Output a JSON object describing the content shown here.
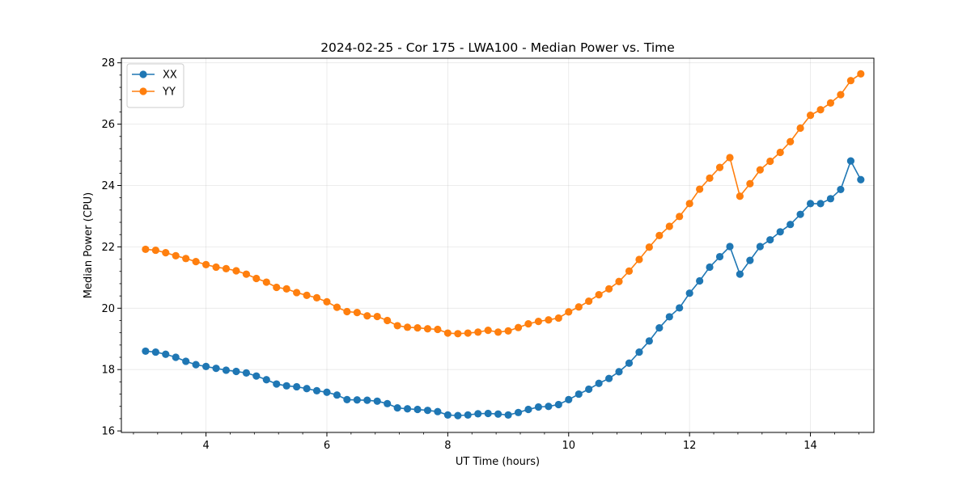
{
  "chart_data": {
    "type": "line",
    "title": "2024-02-25 - Cor 175 - LWA100 - Median Power vs. Time",
    "xlabel": "UT Time (hours)",
    "ylabel": "Median Power (CPU)",
    "xlim": [
      2.6,
      15.05
    ],
    "ylim": [
      15.95,
      28.15
    ],
    "xticks": [
      4,
      6,
      8,
      10,
      12,
      14
    ],
    "xtick_labels": [
      "4",
      "6",
      "8",
      "10",
      "12",
      "14"
    ],
    "xminor_step": 0.4,
    "yticks": [
      16,
      18,
      20,
      22,
      24,
      26,
      28
    ],
    "ytick_labels": [
      "16",
      "18",
      "20",
      "22",
      "24",
      "26",
      "28"
    ],
    "yminor_step": 0.4,
    "grid": true,
    "legend": "top-left",
    "x": [
      3.0,
      3.167,
      3.333,
      3.5,
      3.667,
      3.833,
      4.0,
      4.167,
      4.333,
      4.5,
      4.667,
      4.833,
      5.0,
      5.167,
      5.333,
      5.5,
      5.667,
      5.833,
      6.0,
      6.167,
      6.333,
      6.5,
      6.667,
      6.833,
      7.0,
      7.167,
      7.333,
      7.5,
      7.667,
      7.833,
      8.0,
      8.167,
      8.333,
      8.5,
      8.667,
      8.833,
      9.0,
      9.167,
      9.333,
      9.5,
      9.667,
      9.833,
      10.0,
      10.167,
      10.333,
      10.5,
      10.667,
      10.833,
      11.0,
      11.167,
      11.333,
      11.5,
      11.667,
      11.833,
      12.0,
      12.167,
      12.333,
      12.5,
      12.667,
      12.833,
      13.0,
      13.167,
      13.333,
      13.5,
      13.667,
      13.833,
      14.0,
      14.167,
      14.333,
      14.5,
      14.667,
      14.833
    ],
    "series": [
      {
        "name": "XX",
        "color": "#1f77b4",
        "values": [
          18.6,
          18.57,
          18.5,
          18.4,
          18.27,
          18.16,
          18.1,
          18.04,
          17.98,
          17.94,
          17.89,
          17.79,
          17.67,
          17.53,
          17.47,
          17.44,
          17.38,
          17.31,
          17.26,
          17.17,
          17.02,
          17.01,
          17.0,
          16.97,
          16.89,
          16.75,
          16.72,
          16.7,
          16.67,
          16.63,
          16.52,
          16.5,
          16.52,
          16.56,
          16.57,
          16.55,
          16.52,
          16.6,
          16.7,
          16.78,
          16.8,
          16.86,
          17.02,
          17.2,
          17.36,
          17.55,
          17.71,
          17.93,
          18.21,
          18.57,
          18.93,
          19.36,
          19.72,
          20.01,
          20.49,
          20.89,
          21.34,
          21.68,
          22.01,
          21.11,
          21.56,
          22.01,
          22.23,
          22.49,
          22.73,
          23.06,
          23.41,
          23.41,
          23.57,
          23.87,
          24.8,
          24.19
        ]
      },
      {
        "name": "YY",
        "color": "#ff7f0e",
        "values": [
          21.92,
          21.89,
          21.81,
          21.71,
          21.62,
          21.52,
          21.42,
          21.34,
          21.29,
          21.22,
          21.11,
          20.97,
          20.85,
          20.68,
          20.63,
          20.51,
          20.42,
          20.34,
          20.21,
          20.03,
          19.89,
          19.86,
          19.75,
          19.73,
          19.6,
          19.43,
          19.38,
          19.36,
          19.33,
          19.31,
          19.19,
          19.17,
          19.19,
          19.22,
          19.28,
          19.22,
          19.26,
          19.37,
          19.49,
          19.57,
          19.62,
          19.68,
          19.88,
          20.04,
          20.23,
          20.44,
          20.63,
          20.87,
          21.21,
          21.59,
          21.99,
          22.37,
          22.67,
          22.99,
          23.41,
          23.88,
          24.24,
          24.59,
          24.91,
          23.65,
          24.06,
          24.51,
          24.79,
          25.08,
          25.43,
          25.87,
          26.29,
          26.47,
          26.69,
          26.96,
          27.42,
          27.64
        ]
      }
    ]
  }
}
